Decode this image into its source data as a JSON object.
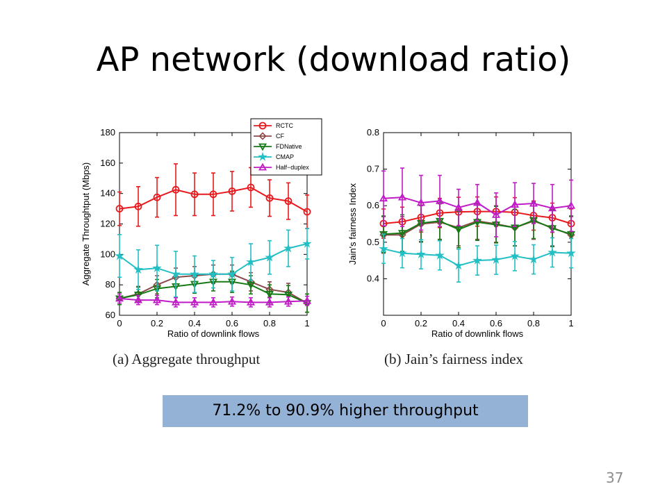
{
  "slide": {
    "title": "AP network (download ratio)",
    "banner": "71.2% to 90.9% higher throughput",
    "page_number": "37"
  },
  "chart_data": [
    {
      "type": "line",
      "xlabel": "Ratio of downlink flows",
      "ylabel": "Aggregate Throughtput (Mbps)",
      "caption": "(a)  Aggregate throughput",
      "xlim": [
        0,
        1
      ],
      "ylim": [
        60,
        180
      ],
      "xticks": [
        0,
        0.2,
        0.4,
        0.6,
        0.8,
        1
      ],
      "yticks": [
        60,
        80,
        100,
        120,
        140,
        160,
        180
      ],
      "legend_position": "top-right",
      "x": [
        0,
        0.1,
        0.2,
        0.3,
        0.4,
        0.5,
        0.6,
        0.7,
        0.8,
        0.9,
        1
      ],
      "series": [
        {
          "name": "RCTC",
          "color": "#e8191c",
          "marker": "circle",
          "values": [
            130,
            131.5,
            137.5,
            142.5,
            139.5,
            139.5,
            141.5,
            144,
            137,
            135,
            128
          ],
          "errors": [
            11,
            13,
            13,
            17,
            14,
            14,
            13,
            13,
            12,
            12,
            11
          ]
        },
        {
          "name": "CF",
          "color": "#8b4a4a",
          "marker": "diamond",
          "values": [
            71,
            74,
            80,
            85,
            86,
            87,
            87,
            82,
            77,
            75,
            68
          ],
          "errors": [
            4,
            5,
            6,
            6,
            6,
            6,
            6,
            6,
            5,
            6,
            6
          ]
        },
        {
          "name": "FDNative",
          "color": "#157a15",
          "marker": "triangle-down",
          "values": [
            71,
            73.5,
            77.5,
            79,
            80.5,
            82,
            82,
            80,
            74,
            73.5,
            68
          ],
          "errors": [
            4,
            5,
            6,
            7,
            6,
            6,
            7,
            6,
            6,
            6,
            6
          ]
        },
        {
          "name": "CMAP",
          "color": "#22bfc4",
          "marker": "star",
          "values": [
            99,
            90,
            91,
            87,
            87,
            87,
            87,
            95,
            98,
            104,
            107
          ],
          "errors": [
            14,
            13,
            15,
            15,
            12,
            9,
            11,
            12,
            11,
            12,
            10
          ]
        },
        {
          "name": "Half−duplex",
          "color": "#c11bc7",
          "marker": "triangle-up",
          "values": [
            71,
            70,
            70,
            68.5,
            68.5,
            68.5,
            69,
            68.5,
            68.5,
            69,
            69.5
          ],
          "errors": [
            3,
            3,
            3,
            3,
            3,
            3,
            3,
            3,
            3,
            3,
            3
          ]
        }
      ]
    },
    {
      "type": "line",
      "xlabel": "Ratio of downlink flows",
      "ylabel": "Jain's fairness Index",
      "caption": "(b)  Jain’s fairness index",
      "xlim": [
        0,
        1
      ],
      "ylim": [
        0.3,
        0.8
      ],
      "xticks": [
        0,
        0.2,
        0.4,
        0.6,
        0.8,
        1
      ],
      "yticks": [
        0.4,
        0.5,
        0.6,
        0.7,
        0.8
      ],
      "x": [
        0,
        0.1,
        0.2,
        0.3,
        0.4,
        0.5,
        0.6,
        0.7,
        0.8,
        0.9,
        1
      ],
      "series": [
        {
          "name": "RCTC",
          "color": "#e8191c",
          "marker": "circle",
          "values": [
            0.551,
            0.556,
            0.568,
            0.58,
            0.583,
            0.584,
            0.584,
            0.582,
            0.573,
            0.567,
            0.551
          ],
          "errors": [
            0.04,
            0.04,
            0.04,
            0.04,
            0.04,
            0.04,
            0.04,
            0.04,
            0.04,
            0.04,
            0.04
          ]
        },
        {
          "name": "CF",
          "color": "#8b4a4a",
          "marker": "diamond",
          "values": [
            0.52,
            0.52,
            0.55,
            0.555,
            0.54,
            0.558,
            0.55,
            0.54,
            0.558,
            0.54,
            0.52
          ],
          "errors": [
            0.05,
            0.05,
            0.05,
            0.05,
            0.05,
            0.05,
            0.05,
            0.05,
            0.05,
            0.05,
            0.05
          ]
        },
        {
          "name": "FDNative",
          "color": "#157a15",
          "marker": "triangle-down",
          "values": [
            0.522,
            0.525,
            0.552,
            0.558,
            0.535,
            0.555,
            0.548,
            0.54,
            0.56,
            0.538,
            0.522
          ],
          "errors": [
            0.05,
            0.05,
            0.05,
            0.05,
            0.05,
            0.05,
            0.05,
            0.05,
            0.05,
            0.05,
            0.05
          ]
        },
        {
          "name": "CMAP",
          "color": "#22bfc4",
          "marker": "star",
          "values": [
            0.482,
            0.47,
            0.467,
            0.464,
            0.436,
            0.45,
            0.452,
            0.462,
            0.453,
            0.472,
            0.47
          ],
          "errors": [
            0.04,
            0.04,
            0.04,
            0.04,
            0.045,
            0.04,
            0.04,
            0.04,
            0.04,
            0.04,
            0.04
          ]
        },
        {
          "name": "Half−duplex",
          "color": "#c11bc7",
          "marker": "triangle-up",
          "values": [
            0.62,
            0.623,
            0.608,
            0.613,
            0.595,
            0.608,
            0.575,
            0.603,
            0.606,
            0.593,
            0.6
          ],
          "errors": [
            0.075,
            0.08,
            0.075,
            0.07,
            0.05,
            0.05,
            0.06,
            0.06,
            0.055,
            0.065,
            0.07
          ]
        }
      ]
    }
  ]
}
